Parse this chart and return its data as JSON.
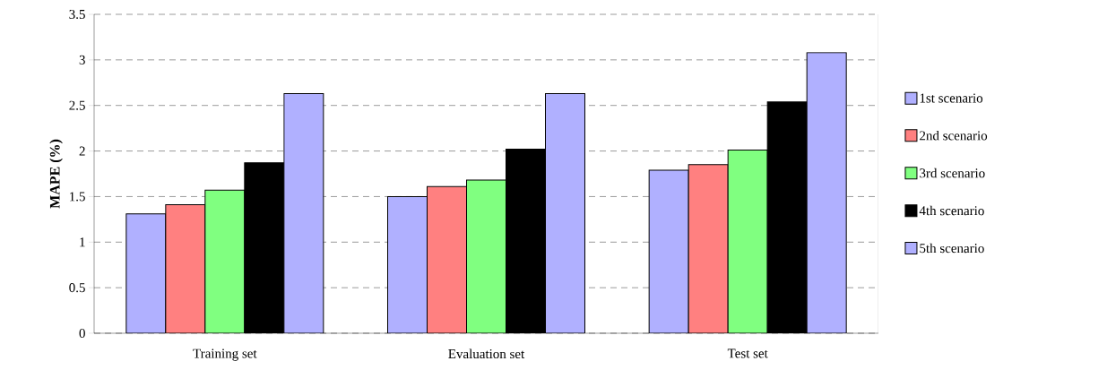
{
  "chart_data": {
    "type": "bar",
    "ylabel": "MAPE (%)",
    "categories": [
      "Training set",
      "Evaluation set",
      "Test set"
    ],
    "series": [
      {
        "name": "1st scenario",
        "color": "#b0b0ff",
        "values": [
          1.31,
          1.5,
          1.79
        ]
      },
      {
        "name": "2nd scenario",
        "color": "#ff8080",
        "values": [
          1.41,
          1.61,
          1.85
        ]
      },
      {
        "name": "3rd scenario",
        "color": "#80ff80",
        "values": [
          1.57,
          1.68,
          2.01
        ]
      },
      {
        "name": "4th scenario",
        "color": "#000000",
        "values": [
          1.87,
          2.02,
          2.54
        ]
      },
      {
        "name": "5th scenario",
        "color": "#b0b0ff",
        "values": [
          2.63,
          2.63,
          3.08
        ]
      }
    ],
    "ylim": [
      0,
      3.5
    ],
    "yticks": [
      0,
      0.5,
      1,
      1.5,
      2,
      2.5,
      3,
      3.5
    ],
    "grid": "y",
    "legend": "right"
  }
}
